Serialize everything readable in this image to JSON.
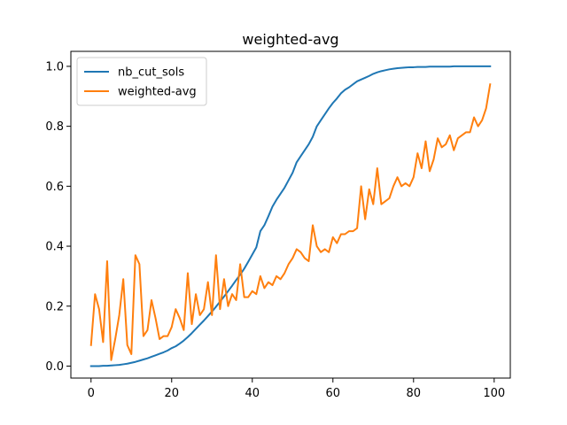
{
  "chart_data": {
    "type": "line",
    "title": "weighted-avg",
    "xlabel": "",
    "ylabel": "",
    "xlim": [
      -5,
      104
    ],
    "ylim": [
      -0.04,
      1.05
    ],
    "xticks": [
      0,
      20,
      40,
      60,
      80,
      100
    ],
    "yticks": [
      0.0,
      0.2,
      0.4,
      0.6,
      0.8,
      1.0
    ],
    "xtick_labels": [
      "0",
      "20",
      "40",
      "60",
      "80",
      "100"
    ],
    "ytick_labels": [
      "0.0",
      "0.2",
      "0.4",
      "0.6",
      "0.8",
      "1.0"
    ],
    "grid": false,
    "legend_position": "top-left",
    "x": [
      0,
      1,
      2,
      3,
      4,
      5,
      6,
      7,
      8,
      9,
      10,
      11,
      12,
      13,
      14,
      15,
      16,
      17,
      18,
      19,
      20,
      21,
      22,
      23,
      24,
      25,
      26,
      27,
      28,
      29,
      30,
      31,
      32,
      33,
      34,
      35,
      36,
      37,
      38,
      39,
      40,
      41,
      42,
      43,
      44,
      45,
      46,
      47,
      48,
      49,
      50,
      51,
      52,
      53,
      54,
      55,
      56,
      57,
      58,
      59,
      60,
      61,
      62,
      63,
      64,
      65,
      66,
      67,
      68,
      69,
      70,
      71,
      72,
      73,
      74,
      75,
      76,
      77,
      78,
      79,
      80,
      81,
      82,
      83,
      84,
      85,
      86,
      87,
      88,
      89,
      90,
      91,
      92,
      93,
      94,
      95,
      96,
      97,
      98,
      99
    ],
    "series": [
      {
        "name": "nb_cut_sols",
        "color": "#1f77b4",
        "values": [
          0.0,
          0.0,
          0.0,
          0.001,
          0.001,
          0.002,
          0.003,
          0.004,
          0.006,
          0.008,
          0.011,
          0.014,
          0.018,
          0.022,
          0.026,
          0.031,
          0.036,
          0.041,
          0.046,
          0.052,
          0.06,
          0.066,
          0.075,
          0.085,
          0.097,
          0.11,
          0.124,
          0.138,
          0.152,
          0.167,
          0.182,
          0.198,
          0.215,
          0.232,
          0.25,
          0.268,
          0.287,
          0.305,
          0.325,
          0.348,
          0.372,
          0.396,
          0.45,
          0.47,
          0.5,
          0.532,
          0.555,
          0.575,
          0.595,
          0.62,
          0.645,
          0.68,
          0.7,
          0.72,
          0.74,
          0.765,
          0.8,
          0.82,
          0.84,
          0.86,
          0.878,
          0.893,
          0.91,
          0.922,
          0.93,
          0.94,
          0.95,
          0.956,
          0.962,
          0.968,
          0.975,
          0.98,
          0.984,
          0.987,
          0.99,
          0.992,
          0.994,
          0.995,
          0.996,
          0.997,
          0.997,
          0.998,
          0.998,
          0.998,
          0.999,
          0.999,
          0.999,
          0.999,
          0.999,
          0.999,
          1.0,
          1.0,
          1.0,
          1.0,
          1.0,
          1.0,
          1.0,
          1.0,
          1.0,
          1.0
        ]
      },
      {
        "name": "weighted-avg",
        "color": "#ff7f0e",
        "values": [
          0.07,
          0.24,
          0.19,
          0.08,
          0.35,
          0.02,
          0.09,
          0.17,
          0.29,
          0.07,
          0.04,
          0.37,
          0.34,
          0.1,
          0.12,
          0.22,
          0.16,
          0.09,
          0.1,
          0.1,
          0.13,
          0.19,
          0.16,
          0.12,
          0.31,
          0.14,
          0.24,
          0.17,
          0.19,
          0.28,
          0.17,
          0.37,
          0.19,
          0.29,
          0.2,
          0.24,
          0.22,
          0.34,
          0.23,
          0.23,
          0.25,
          0.24,
          0.3,
          0.26,
          0.28,
          0.27,
          0.3,
          0.29,
          0.31,
          0.34,
          0.36,
          0.39,
          0.38,
          0.36,
          0.35,
          0.47,
          0.4,
          0.38,
          0.39,
          0.38,
          0.43,
          0.41,
          0.44,
          0.44,
          0.45,
          0.45,
          0.46,
          0.6,
          0.49,
          0.59,
          0.54,
          0.66,
          0.54,
          0.55,
          0.56,
          0.6,
          0.63,
          0.6,
          0.61,
          0.6,
          0.63,
          0.71,
          0.66,
          0.75,
          0.65,
          0.69,
          0.76,
          0.73,
          0.74,
          0.77,
          0.72,
          0.76,
          0.77,
          0.78,
          0.78,
          0.83,
          0.8,
          0.82,
          0.86,
          0.94
        ]
      }
    ]
  }
}
